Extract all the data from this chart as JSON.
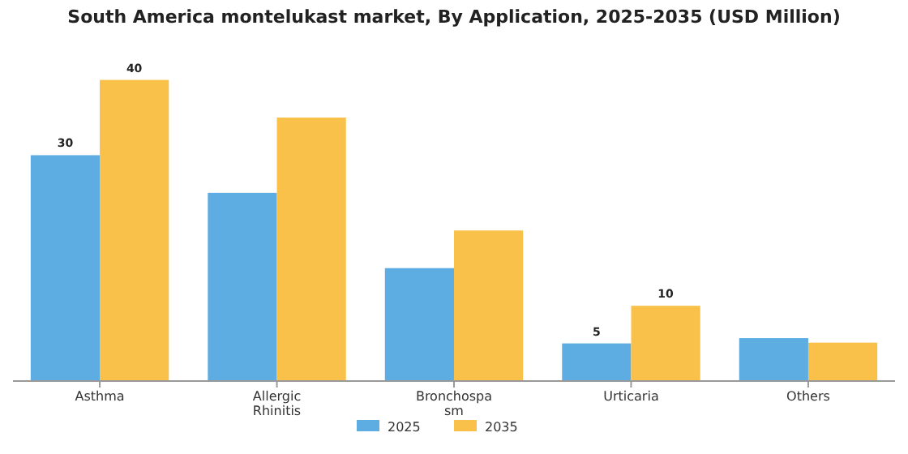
{
  "chart_data": {
    "type": "bar",
    "title": "South America montelukast market, By Application, 2025-2035 (USD Million)",
    "categories": [
      "Asthma",
      "Allergic Rhinitis",
      "Bronchospasm",
      "Urticaria",
      "Others"
    ],
    "series": [
      {
        "name": "2025",
        "color": "#5dade2",
        "values": [
          30,
          25,
          15,
          5,
          5.7
        ],
        "value_labels": [
          "30",
          null,
          null,
          "5",
          null
        ]
      },
      {
        "name": "2035",
        "color": "#f9c04a",
        "values": [
          40,
          35,
          20,
          10,
          5.1
        ],
        "value_labels": [
          "40",
          null,
          null,
          "10",
          null
        ]
      }
    ],
    "legend": "bottom",
    "grid": false
  }
}
